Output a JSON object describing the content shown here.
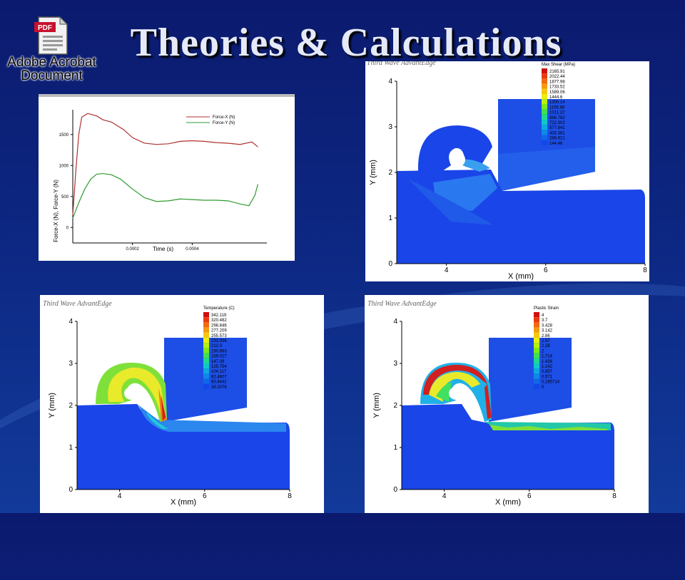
{
  "slide": {
    "title": "Theories & Calculations"
  },
  "attachment": {
    "icon_label": "PDF",
    "name_line1": "Adobe Acrobat",
    "name_line2": "Document"
  },
  "force_chart": {
    "legend": [
      "Force-X (N)",
      "Force-Y (N)"
    ],
    "y_label": "Force-X (N), Force-Y (N)",
    "x_label": "Time (s)",
    "y_ticks": [
      "1500",
      "1000",
      "500",
      "0"
    ],
    "x_ticks": [
      "0.0002",
      "0.0004"
    ],
    "chart_data": {
      "type": "line",
      "x_label": "Time (s)",
      "y_label": "Force-X (N), Force-Y (N)",
      "xlim": [
        0,
        0.00065
      ],
      "ylim": [
        -250,
        1900
      ],
      "series": [
        {
          "name": "Force-X (N)",
          "color": "#b03030",
          "x": [
            0,
            1e-05,
            2e-05,
            3e-05,
            5e-05,
            8e-05,
            0.0001,
            0.00013,
            0.00017,
            0.0002,
            0.00024,
            0.00028,
            0.00032,
            0.00036,
            0.0004,
            0.00044,
            0.00048,
            0.00052,
            0.00056,
            0.0006,
            0.00062
          ],
          "y": [
            200,
            900,
            1500,
            1780,
            1840,
            1800,
            1740,
            1700,
            1580,
            1450,
            1360,
            1340,
            1350,
            1390,
            1400,
            1390,
            1370,
            1360,
            1340,
            1380,
            1300
          ]
        },
        {
          "name": "Force-Y (N)",
          "color": "#2e9a2e",
          "x": [
            0,
            2e-05,
            4e-05,
            6e-05,
            8e-05,
            0.0001,
            0.00013,
            0.00016,
            0.0002,
            0.00024,
            0.00028,
            0.00032,
            0.00036,
            0.0004,
            0.00044,
            0.00048,
            0.00052,
            0.00056,
            0.00059,
            0.00061,
            0.00062
          ],
          "y": [
            150,
            400,
            620,
            780,
            860,
            870,
            850,
            780,
            620,
            480,
            420,
            430,
            460,
            450,
            440,
            440,
            430,
            380,
            350,
            520,
            700
          ]
        }
      ]
    }
  },
  "fem_common": {
    "watermark": "Third Wave AdvantEdge",
    "x_label": "X (mm)",
    "y_label": "Y (mm)",
    "x_ticks": [
      "4",
      "6",
      "8"
    ],
    "y_ticks": [
      "4",
      "3",
      "2",
      "1",
      "0"
    ]
  },
  "shear": {
    "legend_title": "Max Shear (MPa)",
    "legend_values": [
      "2165.91",
      "2022.44",
      "1877.98",
      "1733.52",
      "1589.06",
      "1444.6",
      "1300.14",
      "1155.68",
      "1011.22",
      "866.762",
      "722.302",
      "577.841",
      "433.381",
      "288.921",
      "144.46"
    ]
  },
  "temperature": {
    "legend_title": "Temperature (C)",
    "legend_values": [
      "342.119",
      "320.482",
      "298.846",
      "277.209",
      "255.573",
      "233.936",
      "212.3",
      "190.663",
      "169.027",
      "147.39",
      "125.754",
      "104.117",
      "82.4807",
      "60.8442",
      "39.2076"
    ]
  },
  "strain": {
    "legend_title": "Plastic Strain",
    "legend_values": [
      "4",
      "3.7",
      "3.428",
      "3.142",
      "2.86",
      "2.57",
      "2.28",
      "2",
      "1.714",
      "1.428",
      "1.142",
      "0.857",
      "0.571",
      "0.285714",
      "0"
    ]
  },
  "colors": {
    "legend_scale": [
      "#d01010",
      "#e83a10",
      "#f06a10",
      "#f59a10",
      "#f5c810",
      "#e8f010",
      "#b8f010",
      "#7ce820",
      "#40e050",
      "#20d890",
      "#10c8c8",
      "#10a8e0",
      "#1088e8",
      "#1068e8",
      "#1048e8"
    ],
    "workpiece": "#1a45e8",
    "tool": "#1d4ee6",
    "slide_bg": "#0d2a86"
  }
}
